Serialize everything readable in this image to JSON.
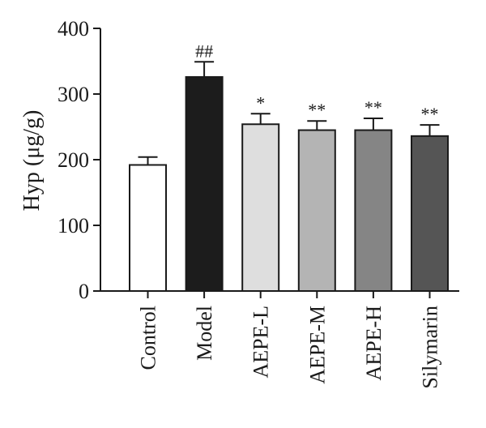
{
  "chart_data": {
    "type": "bar",
    "title": "",
    "xlabel": "",
    "ylabel": "Hyp (μg/g)",
    "ylim": [
      0,
      400
    ],
    "yticks": [
      0,
      100,
      200,
      300,
      400
    ],
    "grid": false,
    "categories": [
      "Control",
      "Model",
      "AEPE-L",
      "AEPE-M",
      "AEPE-H",
      "Silymarin"
    ],
    "values": [
      192,
      326,
      254,
      245,
      245,
      236
    ],
    "errors": [
      12,
      23,
      16,
      14,
      18,
      17
    ],
    "significance": [
      "",
      "##",
      "*",
      "**",
      "**",
      "**"
    ],
    "bar_colors": [
      "#ffffff",
      "#1c1c1c",
      "#dedede",
      "#b4b4b4",
      "#858585",
      "#555555"
    ]
  }
}
